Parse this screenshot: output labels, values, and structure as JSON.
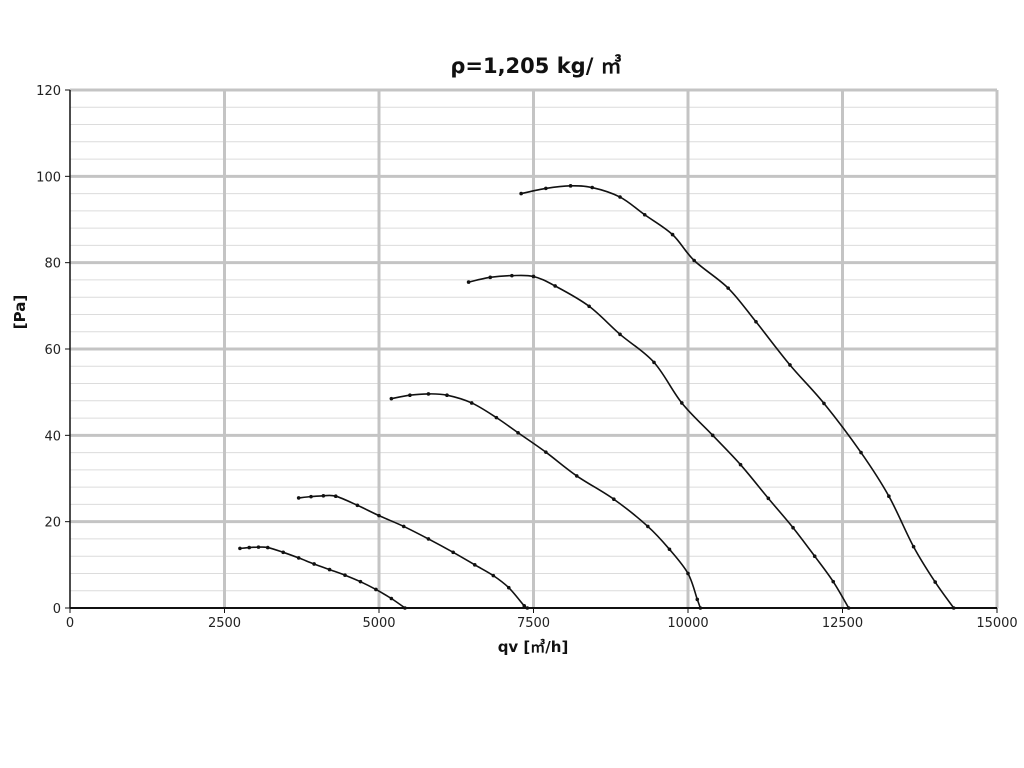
{
  "chart_data": {
    "type": "line",
    "title": "ρ=1,205 kg/ ㎥",
    "xlabel": "qv [㎥/h]",
    "ylabel": "[Pa]",
    "xlim": [
      0,
      15000
    ],
    "ylim": [
      0,
      120
    ],
    "x_ticks": [
      0,
      2500,
      5000,
      7500,
      10000,
      12500,
      15000
    ],
    "y_ticks": [
      0,
      20,
      40,
      60,
      80,
      100,
      120
    ],
    "x_tick_labels": [
      "0",
      "2500",
      "5000",
      "7500",
      "10000",
      "12500",
      "15000"
    ],
    "y_tick_labels": [
      "0",
      "20",
      "40",
      "60",
      "80",
      "100",
      "120"
    ],
    "grid": true,
    "legend": "none",
    "colors": {
      "line": "#111111",
      "major_grid": "#c4c4c4",
      "minor_grid": "#dcdcdc",
      "axis": "#111111"
    },
    "series": [
      {
        "points": [
          [
            2750,
            13.8
          ],
          [
            2900,
            14.0
          ],
          [
            3050,
            14.1
          ],
          [
            3200,
            14.0
          ],
          [
            3450,
            12.9
          ],
          [
            3700,
            11.6
          ],
          [
            3950,
            10.2
          ],
          [
            4200,
            8.9
          ],
          [
            4450,
            7.6
          ],
          [
            4700,
            6.1
          ],
          [
            4950,
            4.3
          ],
          [
            5200,
            2.2
          ],
          [
            5420,
            0
          ]
        ]
      },
      {
        "points": [
          [
            3700,
            25.5
          ],
          [
            3900,
            25.8
          ],
          [
            4100,
            26.0
          ],
          [
            4300,
            25.9
          ],
          [
            4650,
            23.8
          ],
          [
            5000,
            21.4
          ],
          [
            5400,
            18.9
          ],
          [
            5800,
            16.0
          ],
          [
            6200,
            12.9
          ],
          [
            6550,
            10.0
          ],
          [
            6850,
            7.5
          ],
          [
            7100,
            4.7
          ],
          [
            7350,
            0.5
          ],
          [
            7400,
            0
          ]
        ]
      },
      {
        "points": [
          [
            5200,
            48.5
          ],
          [
            5500,
            49.3
          ],
          [
            5800,
            49.6
          ],
          [
            6100,
            49.3
          ],
          [
            6500,
            47.5
          ],
          [
            6900,
            44.1
          ],
          [
            7250,
            40.6
          ],
          [
            7700,
            36.1
          ],
          [
            8200,
            30.6
          ],
          [
            8800,
            25.2
          ],
          [
            9350,
            18.9
          ],
          [
            9700,
            13.6
          ],
          [
            10000,
            8.0
          ],
          [
            10150,
            2.0
          ],
          [
            10200,
            0
          ]
        ]
      },
      {
        "points": [
          [
            6450,
            75.5
          ],
          [
            6800,
            76.6
          ],
          [
            7150,
            77.0
          ],
          [
            7500,
            76.8
          ],
          [
            7850,
            74.6
          ],
          [
            8400,
            69.9
          ],
          [
            8900,
            63.4
          ],
          [
            9450,
            56.9
          ],
          [
            9900,
            47.5
          ],
          [
            10400,
            40.0
          ],
          [
            10850,
            33.2
          ],
          [
            11300,
            25.4
          ],
          [
            11700,
            18.6
          ],
          [
            12050,
            12.0
          ],
          [
            12350,
            6.1
          ],
          [
            12600,
            0
          ]
        ]
      },
      {
        "points": [
          [
            7300,
            96.0
          ],
          [
            7700,
            97.2
          ],
          [
            8100,
            97.8
          ],
          [
            8450,
            97.4
          ],
          [
            8900,
            95.2
          ],
          [
            9300,
            91.1
          ],
          [
            9750,
            86.5
          ],
          [
            10100,
            80.5
          ],
          [
            10650,
            74.1
          ],
          [
            11100,
            66.3
          ],
          [
            11650,
            56.3
          ],
          [
            12200,
            47.4
          ],
          [
            12800,
            36.0
          ],
          [
            13250,
            25.9
          ],
          [
            13650,
            14.2
          ],
          [
            14000,
            6.0
          ],
          [
            14300,
            0
          ]
        ]
      }
    ]
  }
}
